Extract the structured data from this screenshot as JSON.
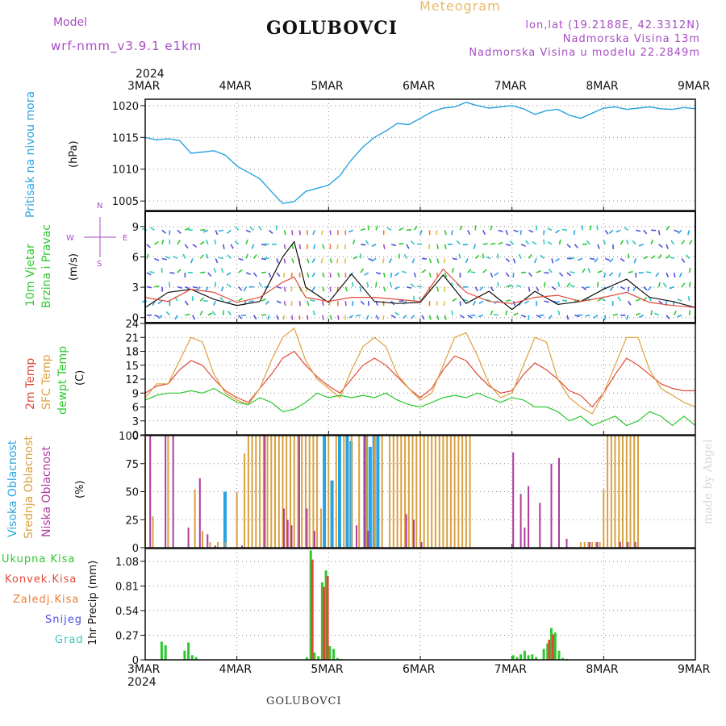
{
  "header": {
    "model_label": "Model",
    "model": "wrf-nmm_v3.9.1 e1km",
    "station": "GOLUBOVCI",
    "meteogram": "Meteogram",
    "lonlat": "lon,lat (19.2188E, 42.3312N)",
    "altitude": "Nadmorska Visina 13m",
    "model_altitude": "Nadmorska Visina u modelu 22.2849m"
  },
  "footer": {
    "station": "GOLUBOVCI",
    "watermark": "made by Angel"
  },
  "x_axis": {
    "year": "2024",
    "ticks": [
      "3MAR",
      "4MAR",
      "5MAR",
      "6MAR",
      "7MAR",
      "8MAR",
      "9MAR"
    ]
  },
  "colors": {
    "pressure": "#29a3e0",
    "wind_label": "#2ec82e",
    "wind_speed": "#111111",
    "gust": "#e04a3a",
    "temp2m": "#e04a3a",
    "sfc_temp": "#e0a040",
    "dewpoint": "#2ec82e",
    "high_cloud": "#29a3e0",
    "mid_cloud": "#d9a040",
    "low_cloud": "#b03aa0",
    "total_precip": "#2ec82e",
    "conv_precip": "#e04a3a",
    "frozen": "#f07a30",
    "snow": "#5050e0",
    "hail": "#30c8c0",
    "compass": "#a64dc4"
  },
  "chart_data": [
    {
      "type": "line",
      "panel": "pressure",
      "ylabel_colored": "Pritisak na nivou mora",
      "ylabel_unit": "(hPa)",
      "yticks": [
        1005,
        1010,
        1015,
        1020
      ],
      "ylim": [
        1003.5,
        1021
      ],
      "grid": true,
      "x_hours": [
        0,
        3,
        6,
        9,
        12,
        15,
        18,
        21,
        24,
        27,
        30,
        33,
        36,
        39,
        42,
        45,
        48,
        51,
        54,
        57,
        60,
        63,
        66,
        69,
        72,
        75,
        78,
        81,
        84,
        87,
        90,
        93,
        96,
        99,
        102,
        105,
        108,
        111,
        114,
        117,
        120,
        123,
        126,
        129,
        132,
        135,
        138,
        141,
        144
      ],
      "values": [
        1015,
        1014.6,
        1014.8,
        1014.5,
        1012.5,
        1012.7,
        1012.9,
        1012.2,
        1010.5,
        1009.5,
        1008.5,
        1006.5,
        1004.6,
        1004.9,
        1006.5,
        1007,
        1007.5,
        1009,
        1011.5,
        1013.5,
        1015,
        1016,
        1017.2,
        1017,
        1018,
        1019,
        1019.6,
        1019.8,
        1020.5,
        1020,
        1019.6,
        1019.8,
        1020,
        1019.5,
        1018.6,
        1019.2,
        1019.4,
        1018.5,
        1018,
        1018.8,
        1019.6,
        1019.8,
        1019.4,
        1019.6,
        1019.8,
        1019.5,
        1019.4,
        1019.7,
        1019.5
      ],
      "series": [
        {
          "name": "",
          "color": "#29a3e0"
        }
      ]
    },
    {
      "type": "line",
      "panel": "wind",
      "ylabel_colored": [
        "10m Vjetar",
        "Brzina i Pravac"
      ],
      "ylabel_unit": "(m/s)",
      "compass": {
        "n": "N",
        "s": "S",
        "e": "E",
        "w": "W"
      },
      "yticks": [
        0,
        3,
        6,
        9
      ],
      "ylim": [
        -0.5,
        10.5
      ],
      "grid": true,
      "x_hours": [
        0,
        6,
        12,
        18,
        24,
        30,
        36,
        39,
        42,
        48,
        54,
        60,
        66,
        72,
        78,
        84,
        90,
        96,
        102,
        108,
        114,
        120,
        126,
        132,
        138,
        144
      ],
      "series": [
        {
          "name": "speed",
          "color": "#111111",
          "values": [
            1.0,
            2.5,
            2.8,
            1.8,
            1.2,
            1.6,
            6.0,
            7.5,
            3.0,
            1.5,
            4.3,
            1.6,
            1.4,
            1.5,
            4.2,
            1.4,
            2.6,
            0.8,
            2.6,
            1.3,
            1.6,
            2.8,
            3.8,
            2.0,
            1.6,
            1.0
          ]
        },
        {
          "name": "gust",
          "color": "#e04a3a",
          "values": [
            2.0,
            1.6,
            2.8,
            2.5,
            1.5,
            2.0,
            3.5,
            4.0,
            2.0,
            1.6,
            2.0,
            2.0,
            1.8,
            1.6,
            4.8,
            2.5,
            1.6,
            1.4,
            2.0,
            2.2,
            1.6,
            2.0,
            2.5,
            1.5,
            1.2,
            1.0
          ]
        }
      ]
    },
    {
      "type": "line",
      "panel": "temperature",
      "ylabels_colored": [
        "2m Temp",
        "SFC Temp",
        "dewpt Temp"
      ],
      "ylabel_unit": "(C)",
      "yticks": [
        0,
        3,
        6,
        9,
        12,
        15,
        18,
        21,
        24
      ],
      "ylim": [
        0,
        24
      ],
      "grid": true,
      "x_hours": [
        0,
        3,
        6,
        9,
        12,
        15,
        18,
        21,
        24,
        27,
        30,
        33,
        36,
        39,
        42,
        45,
        48,
        51,
        54,
        57,
        60,
        63,
        66,
        69,
        72,
        75,
        78,
        81,
        84,
        87,
        90,
        93,
        96,
        99,
        102,
        105,
        108,
        111,
        114,
        117,
        120,
        123,
        126,
        129,
        132,
        135,
        138,
        141,
        144
      ],
      "series": [
        {
          "name": "2m Temp",
          "color": "#e04a3a",
          "values": [
            9,
            10.5,
            11,
            14,
            16,
            15,
            12,
            9.5,
            8,
            7,
            10,
            13,
            16.5,
            18,
            15,
            12.5,
            10.5,
            9,
            12,
            15,
            16.5,
            15,
            12.5,
            10,
            8,
            10,
            14,
            17,
            16,
            13,
            10.5,
            9,
            9.5,
            13,
            15.5,
            14,
            12,
            9.5,
            8.5,
            6,
            9,
            13,
            16.5,
            15,
            13,
            11,
            10,
            9.5,
            9.5
          ]
        },
        {
          "name": "SFC Temp",
          "color": "#e0a040",
          "values": [
            8,
            11,
            11,
            16,
            21,
            20,
            13,
            9,
            7.5,
            6.5,
            10,
            16,
            21,
            23,
            16,
            12,
            10,
            8,
            14,
            19,
            21,
            19,
            13,
            10,
            7.5,
            9,
            15,
            21,
            22,
            17,
            11,
            8,
            9,
            15,
            21,
            20,
            12,
            8,
            6,
            4.5,
            9,
            15,
            21,
            21,
            14,
            10,
            8.5,
            7,
            6
          ]
        },
        {
          "name": "dewpt Temp",
          "color": "#2ec82e",
          "values": [
            7.5,
            8.5,
            9,
            9,
            9.5,
            9,
            10,
            8.5,
            7,
            6.5,
            8,
            7,
            5,
            5.5,
            7,
            9,
            8,
            8.5,
            8,
            8.5,
            8,
            9,
            7.5,
            6.5,
            6,
            7,
            8,
            8.5,
            8,
            9,
            8,
            7,
            8,
            7.5,
            6,
            6,
            5,
            3,
            4,
            2,
            3,
            4,
            2,
            3,
            5,
            4,
            2,
            4,
            2
          ]
        }
      ]
    },
    {
      "type": "bar",
      "panel": "cloud",
      "ylabels_colored": [
        "Visoka Oblacnost",
        "Srednja Oblacnost",
        "Niska Oblacnost"
      ],
      "ylabel_unit": "(%)",
      "yticks": [
        0,
        25,
        50,
        75,
        100
      ],
      "ylim": [
        0,
        100
      ],
      "grid": true,
      "series": [
        {
          "name": "Visoka Oblacnost",
          "color": "#29a3e0",
          "x_hours": [
            21,
            47,
            49,
            51,
            53,
            54,
            58,
            59,
            60,
            61
          ],
          "values": [
            50,
            100,
            60,
            100,
            100,
            95,
            100,
            90,
            100,
            100
          ]
        },
        {
          "name": "Srednja Oblacnost",
          "color": "#d9a040",
          "x_hours": [
            0,
            2,
            6,
            13,
            15,
            17,
            19,
            21,
            24,
            26,
            27,
            28,
            29,
            30,
            31,
            32,
            33,
            34,
            35,
            36,
            37,
            38,
            39,
            40,
            41,
            42,
            43,
            44,
            45,
            46,
            48,
            50,
            52,
            54,
            56,
            58,
            60,
            62,
            64,
            65,
            66,
            67,
            68,
            69,
            70,
            71,
            72,
            73,
            74,
            75,
            76,
            77,
            78,
            79,
            80,
            81,
            82,
            83,
            84,
            85,
            86,
            87,
            88,
            89,
            90,
            91,
            92,
            93,
            94,
            95,
            96,
            97,
            98,
            99,
            100,
            101,
            102,
            103,
            104,
            105,
            106,
            107,
            108,
            109,
            110,
            111,
            112,
            113,
            114,
            115,
            116,
            117,
            118,
            119,
            120,
            121,
            122,
            123,
            124,
            125,
            126,
            127,
            128,
            129,
            130
          ],
          "values": [
            100,
            28,
            100,
            52,
            15,
            5,
            5,
            5,
            50,
            84,
            100,
            100,
            100,
            100,
            100,
            100,
            100,
            100,
            100,
            100,
            100,
            100,
            100,
            100,
            100,
            100,
            100,
            100,
            100,
            35,
            100,
            100,
            100,
            100,
            100,
            100,
            100,
            100,
            100,
            100,
            100,
            100,
            100,
            100,
            100,
            100,
            100,
            100,
            100,
            100,
            100,
            100,
            100,
            100,
            100,
            100,
            100,
            100,
            100,
            100,
            0,
            0,
            0,
            0,
            0,
            0,
            0,
            0,
            0,
            0,
            0,
            0,
            0,
            0,
            0,
            0,
            0,
            0,
            0,
            0,
            0,
            0,
            0,
            0,
            0,
            0,
            0,
            0,
            5,
            5,
            5,
            5,
            5,
            5,
            52,
            100,
            100,
            100,
            100,
            100,
            100,
            100,
            100,
            100,
            0
          ]
        },
        {
          "name": "Niska Oblacnost",
          "color": "#b03aa0",
          "x_hours": [
            1,
            5,
            7,
            11,
            14,
            16,
            18,
            25,
            31,
            36,
            37,
            38,
            40,
            42,
            44,
            55,
            57,
            58,
            68,
            70,
            72,
            96,
            98,
            99,
            100,
            103,
            106,
            108,
            110,
            116,
            118,
            124,
            126,
            128
          ],
          "values": [
            100,
            100,
            100,
            18,
            62,
            12,
            2,
            2,
            100,
            35,
            25,
            20,
            100,
            35,
            15,
            20,
            100,
            15,
            30,
            25,
            5,
            85,
            48,
            18,
            55,
            40,
            75,
            80,
            8,
            5,
            5,
            5,
            5,
            5
          ]
        }
      ]
    },
    {
      "type": "bar",
      "panel": "precip",
      "ylabel": "1hr Precip (mm)",
      "legend_labels": [
        "Ukupna Kisa",
        "Konvek.Kisa",
        "Zaledj.Kisa",
        "Snijeg",
        "Grad"
      ],
      "yticks": [
        0,
        0.27,
        0.54,
        0.81,
        1.08
      ],
      "ylim": [
        0,
        1.22
      ],
      "grid": true,
      "series": [
        {
          "name": "Ukupna Kisa",
          "color": "#2ec82e",
          "x_hours": [
            4,
            5,
            10,
            11,
            12,
            13,
            42,
            43,
            44,
            45,
            46,
            47,
            48,
            49,
            50,
            51,
            52,
            53,
            54,
            55,
            56,
            57,
            58,
            59,
            60,
            61,
            62,
            96,
            97,
            98,
            99,
            100,
            101,
            102,
            104,
            105,
            106,
            107,
            108,
            109,
            110,
            111,
            112
          ],
          "values": [
            0.2,
            0.16,
            0.1,
            0.19,
            0.05,
            0.03,
            0.03,
            1.2,
            0.08,
            0.04,
            0.85,
            0.98,
            0.15,
            0.12,
            0.02,
            0.01,
            0,
            0,
            0,
            0,
            0,
            0,
            0,
            0,
            0,
            0,
            0,
            0.05,
            0.03,
            0.06,
            0.1,
            0.05,
            0.06,
            0.03,
            0.12,
            0.18,
            0.35,
            0.3,
            0.1,
            0.02,
            0.01,
            0,
            0
          ]
        },
        {
          "name": "Konvek.Kisa",
          "color": "#e04a3a",
          "x_hours": [
            43,
            46,
            47,
            105,
            106
          ],
          "values": [
            1.1,
            0.8,
            0.92,
            0.22,
            0.28
          ]
        }
      ]
    }
  ]
}
